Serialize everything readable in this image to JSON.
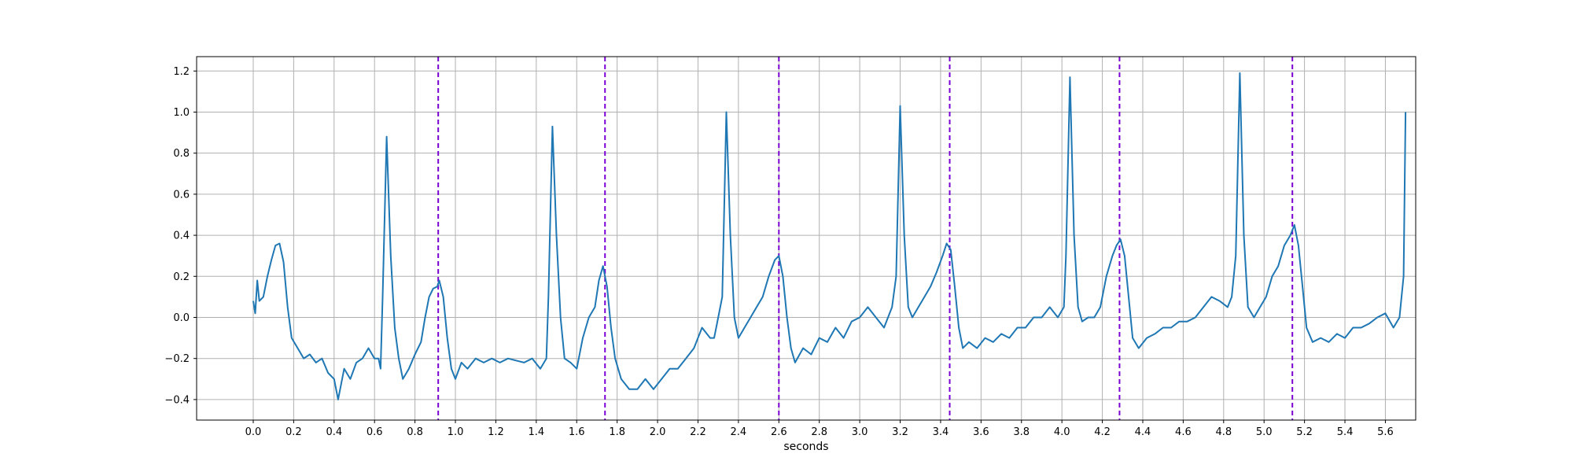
{
  "chart_data": {
    "type": "line",
    "title": "",
    "xlabel": "seconds",
    "ylabel": "",
    "xlim": [
      -0.28,
      5.75
    ],
    "ylim": [
      -0.5,
      1.27
    ],
    "grid": true,
    "x_ticks": [
      0.0,
      0.2,
      0.4,
      0.6,
      0.8,
      1.0,
      1.2,
      1.4,
      1.6,
      1.8,
      2.0,
      2.2,
      2.4,
      2.6,
      2.8,
      3.0,
      3.2,
      3.4,
      3.6,
      3.8,
      4.0,
      4.2,
      4.4,
      4.6,
      4.8,
      5.0,
      5.2,
      5.4,
      5.6
    ],
    "x_tick_labels": [
      "0.0",
      "0.2",
      "0.4",
      "0.6",
      "0.8",
      "1.0",
      "1.2",
      "1.4",
      "1.6",
      "1.8",
      "2.0",
      "2.2",
      "2.4",
      "2.6",
      "2.8",
      "3.0",
      "3.2",
      "3.4",
      "3.6",
      "3.8",
      "4.0",
      "4.2",
      "4.4",
      "4.6",
      "4.8",
      "5.0",
      "5.2",
      "5.4",
      "5.6"
    ],
    "y_ticks": [
      -0.4,
      -0.2,
      0.0,
      0.2,
      0.4,
      0.6,
      0.8,
      1.0,
      1.2
    ],
    "y_tick_labels": [
      "−0.4",
      "−0.2",
      "0.0",
      "0.2",
      "0.4",
      "0.6",
      "0.8",
      "1.0",
      "1.2"
    ],
    "series": [
      {
        "color": "#1f77b4",
        "points": [
          [
            0.0,
            0.08
          ],
          [
            0.01,
            0.02
          ],
          [
            0.02,
            0.18
          ],
          [
            0.03,
            0.08
          ],
          [
            0.05,
            0.1
          ],
          [
            0.07,
            0.2
          ],
          [
            0.09,
            0.28
          ],
          [
            0.11,
            0.35
          ],
          [
            0.13,
            0.36
          ],
          [
            0.15,
            0.27
          ],
          [
            0.17,
            0.05
          ],
          [
            0.19,
            -0.1
          ],
          [
            0.22,
            -0.15
          ],
          [
            0.25,
            -0.2
          ],
          [
            0.28,
            -0.18
          ],
          [
            0.31,
            -0.22
          ],
          [
            0.34,
            -0.2
          ],
          [
            0.37,
            -0.27
          ],
          [
            0.4,
            -0.3
          ],
          [
            0.42,
            -0.4
          ],
          [
            0.45,
            -0.25
          ],
          [
            0.48,
            -0.3
          ],
          [
            0.51,
            -0.22
          ],
          [
            0.54,
            -0.2
          ],
          [
            0.57,
            -0.15
          ],
          [
            0.6,
            -0.2
          ],
          [
            0.62,
            -0.2
          ],
          [
            0.63,
            -0.25
          ],
          [
            0.64,
            0.1
          ],
          [
            0.66,
            0.88
          ],
          [
            0.68,
            0.3
          ],
          [
            0.7,
            -0.05
          ],
          [
            0.72,
            -0.2
          ],
          [
            0.74,
            -0.3
          ],
          [
            0.77,
            -0.25
          ],
          [
            0.8,
            -0.18
          ],
          [
            0.83,
            -0.12
          ],
          [
            0.85,
            0.0
          ],
          [
            0.87,
            0.1
          ],
          [
            0.89,
            0.14
          ],
          [
            0.91,
            0.15
          ],
          [
            0.92,
            0.18
          ],
          [
            0.94,
            0.1
          ],
          [
            0.96,
            -0.1
          ],
          [
            0.98,
            -0.25
          ],
          [
            1.0,
            -0.3
          ],
          [
            1.03,
            -0.22
          ],
          [
            1.06,
            -0.25
          ],
          [
            1.1,
            -0.2
          ],
          [
            1.14,
            -0.22
          ],
          [
            1.18,
            -0.2
          ],
          [
            1.22,
            -0.22
          ],
          [
            1.26,
            -0.2
          ],
          [
            1.3,
            -0.21
          ],
          [
            1.34,
            -0.22
          ],
          [
            1.38,
            -0.2
          ],
          [
            1.42,
            -0.25
          ],
          [
            1.45,
            -0.2
          ],
          [
            1.46,
            0.1
          ],
          [
            1.48,
            0.93
          ],
          [
            1.5,
            0.4
          ],
          [
            1.52,
            0.0
          ],
          [
            1.54,
            -0.2
          ],
          [
            1.57,
            -0.22
          ],
          [
            1.6,
            -0.25
          ],
          [
            1.63,
            -0.1
          ],
          [
            1.66,
            0.0
          ],
          [
            1.69,
            0.05
          ],
          [
            1.71,
            0.18
          ],
          [
            1.73,
            0.25
          ],
          [
            1.75,
            0.15
          ],
          [
            1.77,
            -0.05
          ],
          [
            1.79,
            -0.2
          ],
          [
            1.82,
            -0.3
          ],
          [
            1.86,
            -0.35
          ],
          [
            1.9,
            -0.35
          ],
          [
            1.94,
            -0.3
          ],
          [
            1.98,
            -0.35
          ],
          [
            2.02,
            -0.3
          ],
          [
            2.06,
            -0.25
          ],
          [
            2.1,
            -0.25
          ],
          [
            2.14,
            -0.2
          ],
          [
            2.18,
            -0.15
          ],
          [
            2.22,
            -0.05
          ],
          [
            2.26,
            -0.1
          ],
          [
            2.28,
            -0.1
          ],
          [
            2.3,
            0.0
          ],
          [
            2.32,
            0.1
          ],
          [
            2.34,
            1.0
          ],
          [
            2.36,
            0.4
          ],
          [
            2.38,
            0.0
          ],
          [
            2.4,
            -0.1
          ],
          [
            2.43,
            -0.05
          ],
          [
            2.46,
            0.0
          ],
          [
            2.49,
            0.05
          ],
          [
            2.52,
            0.1
          ],
          [
            2.55,
            0.2
          ],
          [
            2.58,
            0.28
          ],
          [
            2.6,
            0.3
          ],
          [
            2.62,
            0.2
          ],
          [
            2.64,
            0.0
          ],
          [
            2.66,
            -0.15
          ],
          [
            2.68,
            -0.22
          ],
          [
            2.72,
            -0.15
          ],
          [
            2.76,
            -0.18
          ],
          [
            2.8,
            -0.1
          ],
          [
            2.84,
            -0.12
          ],
          [
            2.88,
            -0.05
          ],
          [
            2.92,
            -0.1
          ],
          [
            2.96,
            -0.02
          ],
          [
            3.0,
            0.0
          ],
          [
            3.04,
            0.05
          ],
          [
            3.08,
            0.0
          ],
          [
            3.12,
            -0.05
          ],
          [
            3.16,
            0.05
          ],
          [
            3.18,
            0.2
          ],
          [
            3.2,
            1.03
          ],
          [
            3.22,
            0.4
          ],
          [
            3.24,
            0.05
          ],
          [
            3.26,
            0.0
          ],
          [
            3.29,
            0.05
          ],
          [
            3.32,
            0.1
          ],
          [
            3.35,
            0.15
          ],
          [
            3.38,
            0.22
          ],
          [
            3.41,
            0.3
          ],
          [
            3.43,
            0.36
          ],
          [
            3.45,
            0.33
          ],
          [
            3.47,
            0.15
          ],
          [
            3.49,
            -0.05
          ],
          [
            3.51,
            -0.15
          ],
          [
            3.54,
            -0.12
          ],
          [
            3.58,
            -0.15
          ],
          [
            3.62,
            -0.1
          ],
          [
            3.66,
            -0.12
          ],
          [
            3.7,
            -0.08
          ],
          [
            3.74,
            -0.1
          ],
          [
            3.78,
            -0.05
          ],
          [
            3.82,
            -0.05
          ],
          [
            3.86,
            0.0
          ],
          [
            3.9,
            0.0
          ],
          [
            3.94,
            0.05
          ],
          [
            3.98,
            0.0
          ],
          [
            4.01,
            0.05
          ],
          [
            4.02,
            0.3
          ],
          [
            4.04,
            1.17
          ],
          [
            4.06,
            0.4
          ],
          [
            4.08,
            0.05
          ],
          [
            4.1,
            -0.02
          ],
          [
            4.13,
            0.0
          ],
          [
            4.16,
            0.0
          ],
          [
            4.19,
            0.05
          ],
          [
            4.22,
            0.2
          ],
          [
            4.25,
            0.3
          ],
          [
            4.27,
            0.35
          ],
          [
            4.29,
            0.38
          ],
          [
            4.31,
            0.3
          ],
          [
            4.33,
            0.1
          ],
          [
            4.35,
            -0.1
          ],
          [
            4.38,
            -0.15
          ],
          [
            4.42,
            -0.1
          ],
          [
            4.46,
            -0.08
          ],
          [
            4.5,
            -0.05
          ],
          [
            4.54,
            -0.05
          ],
          [
            4.58,
            -0.02
          ],
          [
            4.62,
            -0.02
          ],
          [
            4.66,
            0.0
          ],
          [
            4.7,
            0.05
          ],
          [
            4.74,
            0.1
          ],
          [
            4.78,
            0.08
          ],
          [
            4.82,
            0.05
          ],
          [
            4.84,
            0.1
          ],
          [
            4.86,
            0.3
          ],
          [
            4.88,
            1.19
          ],
          [
            4.9,
            0.4
          ],
          [
            4.92,
            0.05
          ],
          [
            4.95,
            0.0
          ],
          [
            4.98,
            0.05
          ],
          [
            5.01,
            0.1
          ],
          [
            5.04,
            0.2
          ],
          [
            5.07,
            0.25
          ],
          [
            5.1,
            0.35
          ],
          [
            5.13,
            0.4
          ],
          [
            5.15,
            0.45
          ],
          [
            5.17,
            0.35
          ],
          [
            5.19,
            0.15
          ],
          [
            5.21,
            -0.05
          ],
          [
            5.24,
            -0.12
          ],
          [
            5.28,
            -0.1
          ],
          [
            5.32,
            -0.12
          ],
          [
            5.36,
            -0.08
          ],
          [
            5.4,
            -0.1
          ],
          [
            5.44,
            -0.05
          ],
          [
            5.48,
            -0.05
          ],
          [
            5.52,
            -0.03
          ],
          [
            5.56,
            0.0
          ],
          [
            5.6,
            0.02
          ],
          [
            5.64,
            -0.05
          ],
          [
            5.67,
            0.0
          ],
          [
            5.69,
            0.2
          ],
          [
            5.7,
            1.0
          ]
        ]
      }
    ],
    "vlines": [
      0.915,
      1.74,
      2.6,
      3.445,
      4.285,
      5.14
    ],
    "vline_color": "#7b00d4"
  }
}
